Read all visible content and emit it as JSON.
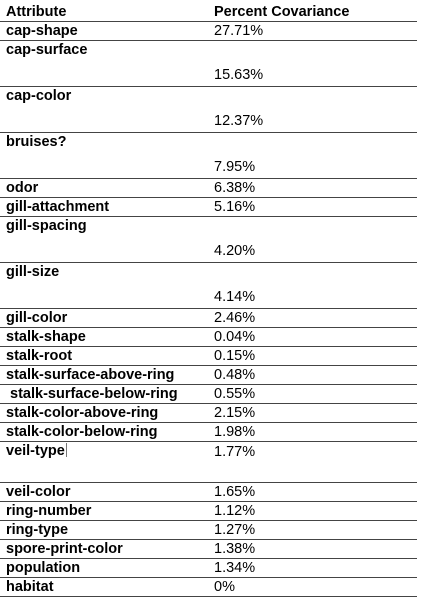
{
  "header": {
    "attribute": "Attribute",
    "percent": "Percent Covariance"
  },
  "rows": [
    {
      "attribute": "cap-shape",
      "value": "27.71%"
    },
    {
      "attribute": "cap-surface",
      "value": "15.63%"
    },
    {
      "attribute": "cap-color",
      "value": "12.37%"
    },
    {
      "attribute": "bruises?",
      "value": "7.95%"
    },
    {
      "attribute": "odor",
      "value": "6.38%"
    },
    {
      "attribute": "gill-attachment",
      "value": "5.16%"
    },
    {
      "attribute": "gill-spacing",
      "value": "4.20%"
    },
    {
      "attribute": "gill-size",
      "value": "4.14%"
    },
    {
      "attribute": "gill-color",
      "value": "2.46%"
    },
    {
      "attribute": "stalk-shape",
      "value": "0.04%"
    },
    {
      "attribute": "stalk-root",
      "value": "0.15%"
    },
    {
      "attribute": "stalk-surface-above-ring",
      "value": "0.48%"
    },
    {
      "attribute": " stalk-surface-below-ring",
      "value": "0.55%"
    },
    {
      "attribute": "stalk-color-above-ring",
      "value": "2.15%"
    },
    {
      "attribute": "stalk-color-below-ring",
      "value": "1.98%"
    },
    {
      "attribute": "veil-type",
      "value": "1.77%"
    },
    {
      "attribute": "veil-color",
      "value": "1.65%"
    },
    {
      "attribute": "ring-number",
      "value": "1.12%"
    },
    {
      "attribute": "ring-type",
      "value": "1.27%"
    },
    {
      "attribute": "spore-print-color",
      "value": "1.38%"
    },
    {
      "attribute": "population",
      "value": "1.34%"
    },
    {
      "attribute": "habitat",
      "value": "0%"
    }
  ]
}
